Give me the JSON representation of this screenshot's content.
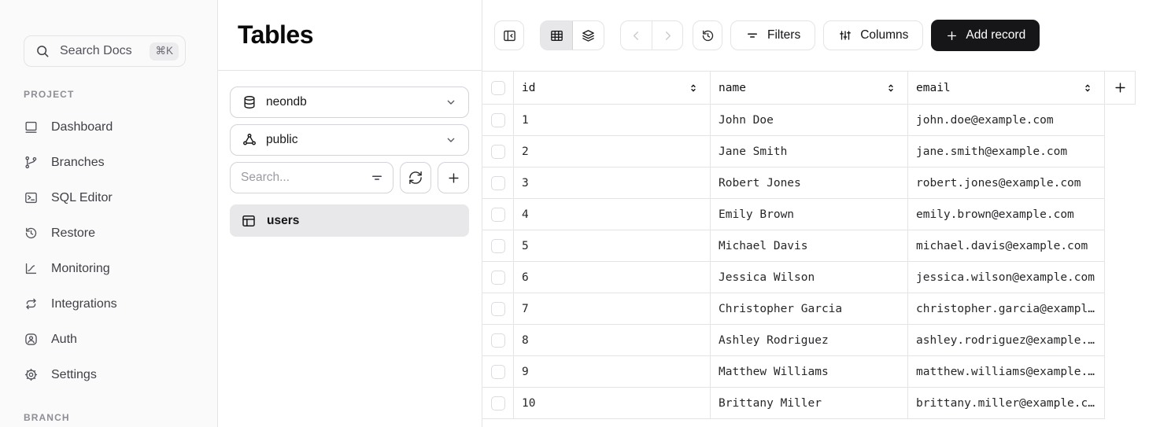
{
  "sidebar": {
    "search_label": "Search Docs",
    "search_shortcut": "⌘K",
    "project_label": "PROJECT",
    "items": [
      {
        "icon": "dashboard-icon",
        "label": "Dashboard"
      },
      {
        "icon": "branches-icon",
        "label": "Branches"
      },
      {
        "icon": "sql-editor-icon",
        "label": "SQL Editor"
      },
      {
        "icon": "restore-icon",
        "label": "Restore"
      },
      {
        "icon": "monitoring-icon",
        "label": "Monitoring"
      },
      {
        "icon": "integrations-icon",
        "label": "Integrations"
      },
      {
        "icon": "auth-icon",
        "label": "Auth"
      },
      {
        "icon": "settings-icon",
        "label": "Settings"
      }
    ],
    "branch_label": "BRANCH"
  },
  "tables_panel": {
    "title": "Tables",
    "database_selector": {
      "icon": "database-icon",
      "value": "neondb"
    },
    "schema_selector": {
      "icon": "schema-icon",
      "value": "public"
    },
    "search_placeholder": "Search...",
    "tables": [
      {
        "icon": "table-icon",
        "name": "users",
        "selected": true
      }
    ]
  },
  "toolbar": {
    "filters_label": "Filters",
    "columns_label": "Columns",
    "add_record_label": "Add record",
    "view_segments": [
      "grid-view",
      "layers-view"
    ],
    "selected_segment": "grid-view"
  },
  "data_table": {
    "columns": [
      "id",
      "name",
      "email"
    ],
    "rows": [
      {
        "id": "1",
        "name": "John Doe",
        "email": "john.doe@example.com"
      },
      {
        "id": "2",
        "name": "Jane Smith",
        "email": "jane.smith@example.com"
      },
      {
        "id": "3",
        "name": "Robert Jones",
        "email": "robert.jones@example.com"
      },
      {
        "id": "4",
        "name": "Emily Brown",
        "email": "emily.brown@example.com"
      },
      {
        "id": "5",
        "name": "Michael Davis",
        "email": "michael.davis@example.com"
      },
      {
        "id": "6",
        "name": "Jessica Wilson",
        "email": "jessica.wilson@example.com"
      },
      {
        "id": "7",
        "name": "Christopher Garcia",
        "email": "christopher.garcia@example.com"
      },
      {
        "id": "8",
        "name": "Ashley Rodriguez",
        "email": "ashley.rodriguez@example.com"
      },
      {
        "id": "9",
        "name": "Matthew Williams",
        "email": "matthew.williams@example.com"
      },
      {
        "id": "10",
        "name": "Brittany Miller",
        "email": "brittany.miller@example.com"
      }
    ]
  },
  "colors": {
    "border": "#e4e4e7",
    "sidebar_bg": "#fafafa",
    "selected_item_bg": "#e8e8ea",
    "segment_selected_bg": "#e7e7e9",
    "accent_button_bg": "#161618",
    "accent_button_text": "#ffffff",
    "text_primary": "#18181b",
    "text_muted": "#8e8e95"
  }
}
